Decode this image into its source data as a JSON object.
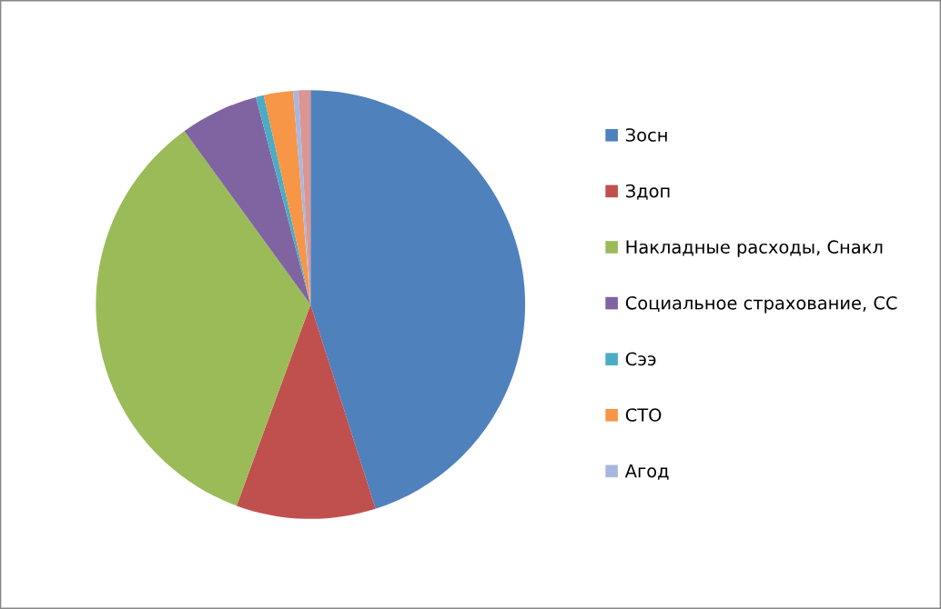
{
  "chart_data": {
    "type": "pie",
    "categories": [
      "Зосн",
      "Здоп",
      "Накладные расходы, Снакл",
      "Социальное страхование, СС",
      "Сээ",
      "СТО",
      "Агод",
      null
    ],
    "values": [
      45.1,
      10.5,
      34.4,
      5.9,
      0.6,
      2.2,
      0.4,
      0.9
    ],
    "colors": [
      "#4f81bd",
      "#c0504d",
      "#9bbb59",
      "#8064a2",
      "#4bacc6",
      "#f79646",
      "#a9b7de",
      "#d99694"
    ],
    "legend": "right"
  }
}
